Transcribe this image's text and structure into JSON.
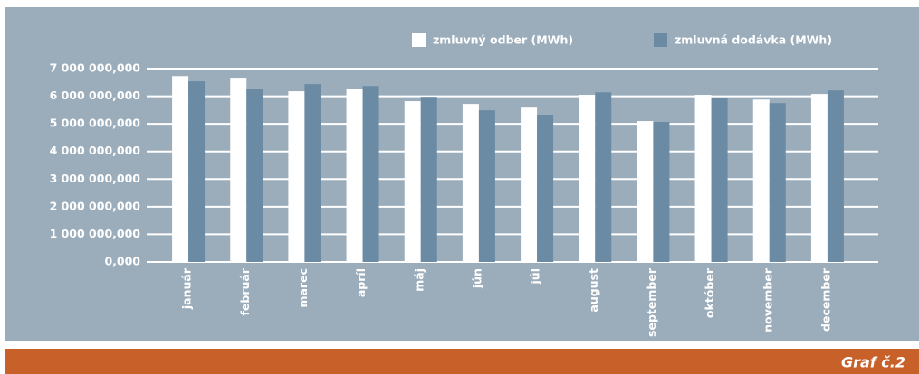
{
  "chart_data": {
    "type": "bar",
    "categories": [
      "január",
      "február",
      "marec",
      "apríl",
      "máj",
      "jún",
      "júl",
      "august",
      "september",
      "október",
      "november",
      "december"
    ],
    "series": [
      {
        "name": "zmluvný odber (MWh)",
        "color": "#ffffff",
        "values": [
          6730000,
          6670000,
          6180000,
          6270000,
          5820000,
          5720000,
          5620000,
          6050000,
          5100000,
          6050000,
          5880000,
          6080000
        ]
      },
      {
        "name": "zmluvná dodávka (MWh)",
        "color": "#6a8ba3",
        "values": [
          6540000,
          6270000,
          6440000,
          6370000,
          5980000,
          5490000,
          5330000,
          6140000,
          5070000,
          5950000,
          5750000,
          6210000
        ]
      }
    ],
    "ylim": [
      0,
      7000000
    ],
    "yticks": [
      {
        "value": 0,
        "label": "0,000"
      },
      {
        "value": 1000000,
        "label": "1 000 000,000"
      },
      {
        "value": 2000000,
        "label": "2 000 000,000"
      },
      {
        "value": 3000000,
        "label": "3 000 000,000"
      },
      {
        "value": 4000000,
        "label": "4 000 000,000"
      },
      {
        "value": 5000000,
        "label": "5 000 000,000"
      },
      {
        "value": 6000000,
        "label": "6 000 000,000"
      },
      {
        "value": 7000000,
        "label": "7 000 000,000"
      }
    ],
    "grid": true,
    "legend": "top-right",
    "background": "#9badbb"
  },
  "caption": "Graf č.2"
}
